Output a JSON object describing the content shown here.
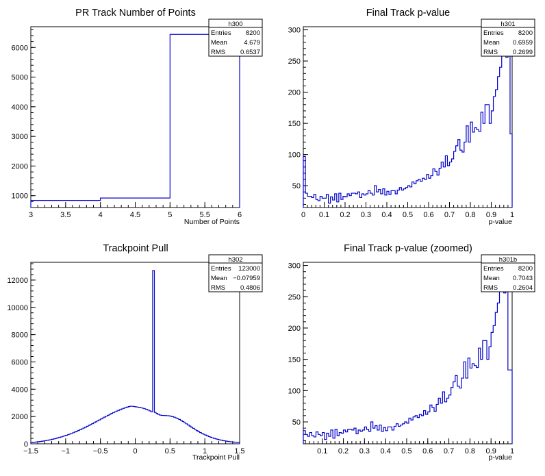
{
  "chart_data": [
    {
      "type": "bar",
      "id": "h300",
      "title": "PR Track Number of Points",
      "xlabel": "Number of Points",
      "ylabel": "",
      "xlim": [
        3,
        6
      ],
      "ylim": [
        600,
        6700
      ],
      "yaxis_start": 600,
      "xticks": [
        3,
        3.5,
        4,
        4.5,
        5,
        5.5,
        6
      ],
      "xtick_labels": [
        "3",
        "3.5",
        "4",
        "4.5",
        "5",
        "5.5",
        "6"
      ],
      "yticks": [
        1000,
        2000,
        3000,
        4000,
        5000,
        6000
      ],
      "ytick_labels": [
        "1000",
        "2000",
        "3000",
        "4000",
        "5000",
        "6000"
      ],
      "bin_edges": [
        3,
        4,
        5,
        6
      ],
      "values": [
        840,
        920,
        6440
      ],
      "legend_position": "top-right",
      "stats": {
        "name": "h300",
        "rows": [
          [
            "Entries",
            "8200"
          ],
          [
            "Mean",
            "4.679"
          ],
          [
            "RMS",
            "0.6537"
          ]
        ]
      },
      "line_color": "#0000cc",
      "grid": false
    },
    {
      "type": "bar",
      "id": "h301",
      "title": "Final Track p-value",
      "xlabel": "p-value",
      "ylabel": "",
      "xlim": [
        0,
        1
      ],
      "ylim": [
        15,
        305
      ],
      "yaxis_start": 15,
      "xticks": [
        0,
        0.1,
        0.2,
        0.3,
        0.4,
        0.5,
        0.6,
        0.7,
        0.8,
        0.9,
        1
      ],
      "xtick_labels": [
        "0",
        "0.1",
        "0.2",
        "0.3",
        "0.4",
        "0.5",
        "0.6",
        "0.7",
        "0.8",
        "0.9",
        "1"
      ],
      "yticks": [
        50,
        100,
        150,
        200,
        250,
        300
      ],
      "ytick_labels": [
        "50",
        "100",
        "150",
        "200",
        "250",
        "300"
      ],
      "bin_edges_range": [
        0,
        1
      ],
      "values": [
        97,
        38,
        33,
        33,
        31,
        36,
        28,
        26,
        33,
        30,
        30,
        36,
        22,
        32,
        27,
        37,
        24,
        38,
        28,
        33,
        32,
        37,
        34,
        38,
        38,
        37,
        40,
        31,
        37,
        35,
        37,
        42,
        38,
        35,
        50,
        40,
        44,
        37,
        45,
        35,
        41,
        36,
        42,
        42,
        37,
        43,
        47,
        43,
        45,
        47,
        50,
        48,
        56,
        53,
        58,
        60,
        57,
        62,
        60,
        68,
        62,
        66,
        77,
        73,
        67,
        78,
        88,
        80,
        98,
        82,
        88,
        93,
        105,
        114,
        124,
        107,
        104,
        120,
        146,
        120,
        152,
        136,
        143,
        140,
        137,
        168,
        150,
        180,
        180,
        150,
        170,
        193,
        204,
        225,
        240,
        260,
        265,
        256,
        320,
        133
      ],
      "legend_position": "top-right",
      "stats": {
        "name": "h301",
        "rows": [
          [
            "Entries",
            "8200"
          ],
          [
            "Mean",
            "0.6959"
          ],
          [
            "RMS",
            "0.2699"
          ]
        ]
      },
      "line_color": "#0000cc",
      "grid": false
    },
    {
      "type": "bar",
      "id": "h302",
      "title": "Trackpoint Pull",
      "xlabel": "Trackpoint Pull",
      "ylabel": "",
      "xlim": [
        -1.5,
        1.5
      ],
      "ylim": [
        0,
        13300
      ],
      "yaxis_start": 0,
      "xticks": [
        -1.5,
        -1,
        -0.5,
        0,
        0.5,
        1,
        1.5
      ],
      "xtick_labels": [
        "−1.5",
        "−1",
        "−0.5",
        "0",
        "0.5",
        "1",
        "1.5"
      ],
      "yticks": [
        0,
        2000,
        4000,
        6000,
        8000,
        10000,
        12000
      ],
      "ytick_labels": [
        "0",
        "2000",
        "4000",
        "6000",
        "8000",
        "10000",
        "12000"
      ],
      "bin_edges_range": [
        -1.5,
        1.5
      ],
      "values": [
        95,
        107,
        121,
        138,
        152,
        169,
        188,
        208,
        229,
        253,
        277,
        304,
        334,
        365,
        397,
        431,
        466,
        503,
        543,
        582,
        623,
        667,
        713,
        763,
        813,
        868,
        922,
        979,
        1036,
        1094,
        1158,
        1218,
        1282,
        1347,
        1412,
        1478,
        1546,
        1614,
        1683,
        1752,
        1822,
        1891,
        1957,
        2024,
        2090,
        2160,
        2223,
        2281,
        2342,
        2399,
        2453,
        2505,
        2556,
        2603,
        2648,
        2690,
        2728,
        2757,
        2751,
        2730,
        2709,
        2687,
        2665,
        2637,
        2606,
        2569,
        2526,
        2474,
        2415,
        2345,
        12700,
        2300,
        2220,
        2150,
        2100,
        2080,
        2075,
        2070,
        2062,
        2050,
        2025,
        1991,
        1951,
        1899,
        1846,
        1780,
        1710,
        1634,
        1552,
        1466,
        1380,
        1297,
        1212,
        1134,
        1051,
        968,
        896,
        824,
        758,
        700,
        640,
        585,
        531,
        483,
        435,
        396,
        360,
        327,
        296,
        268,
        240,
        216,
        194,
        174,
        156,
        141,
        127,
        115,
        104,
        95
      ],
      "legend_position": "top-right",
      "stats": {
        "name": "h302",
        "rows": [
          [
            "Entries",
            "123000"
          ],
          [
            "Mean",
            "−0.07959"
          ],
          [
            "RMS",
            "0.4806"
          ]
        ]
      },
      "line_color": "#0000cc",
      "grid": false
    },
    {
      "type": "bar",
      "id": "h301b",
      "title": "Final Track p-value (zoomed)",
      "xlabel": "p-value",
      "ylabel": "",
      "xlim": [
        0.01,
        1
      ],
      "ylim": [
        15,
        305
      ],
      "yaxis_start": 15,
      "xticks": [
        0.1,
        0.2,
        0.3,
        0.4,
        0.5,
        0.6,
        0.7,
        0.8,
        0.9,
        1
      ],
      "xtick_labels": [
        "0.1",
        "0.2",
        "0.3",
        "0.4",
        "0.5",
        "0.6",
        "0.7",
        "0.8",
        "0.9",
        "1"
      ],
      "yticks": [
        50,
        100,
        150,
        200,
        250,
        300
      ],
      "ytick_labels": [
        "50",
        "100",
        "150",
        "200",
        "250",
        "300"
      ],
      "bin_edges_range": [
        0.01,
        1
      ],
      "values": [
        36,
        30,
        27,
        33,
        28,
        26,
        34,
        30,
        28,
        33,
        22,
        32,
        27,
        37,
        24,
        38,
        28,
        33,
        32,
        37,
        34,
        38,
        38,
        37,
        40,
        31,
        37,
        35,
        37,
        42,
        38,
        35,
        50,
        40,
        44,
        37,
        45,
        35,
        41,
        36,
        42,
        42,
        37,
        43,
        47,
        43,
        45,
        47,
        50,
        48,
        56,
        53,
        58,
        60,
        57,
        62,
        60,
        68,
        62,
        66,
        77,
        73,
        67,
        78,
        88,
        80,
        98,
        82,
        88,
        93,
        105,
        114,
        124,
        107,
        104,
        120,
        146,
        120,
        152,
        136,
        143,
        140,
        137,
        168,
        150,
        180,
        180,
        150,
        170,
        193,
        204,
        225,
        240,
        260,
        265,
        256,
        320,
        133,
        133
      ],
      "legend_position": "top-right",
      "stats": {
        "name": "h301b",
        "rows": [
          [
            "Entries",
            "8200"
          ],
          [
            "Mean",
            "0.7043"
          ],
          [
            "RMS",
            "0.2604"
          ]
        ]
      },
      "line_color": "#0000cc",
      "grid": false
    }
  ]
}
